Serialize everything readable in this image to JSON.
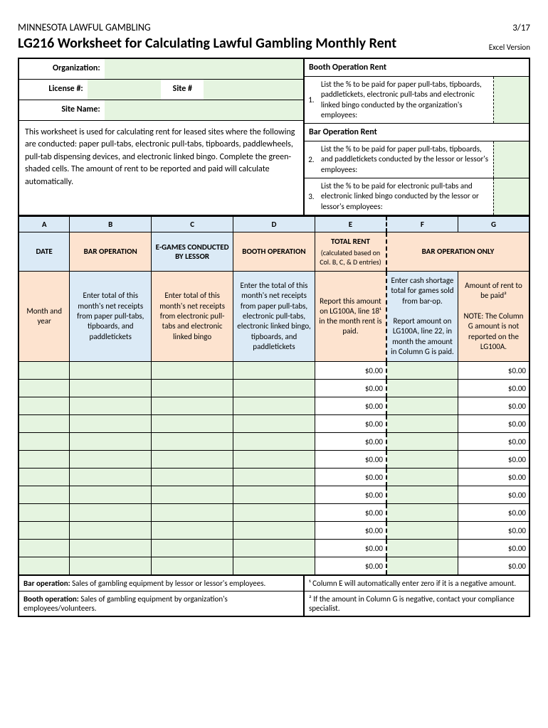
{
  "header": {
    "org_header": "MINNESOTA LAWFUL GAMBLING",
    "date_head": "3/17",
    "main_title": "LG216 Worksheet for Calculating Lawful Gambling Monthly Rent",
    "excel_version": "Excel Version"
  },
  "left_form": {
    "organization_label": "Organization:",
    "license_label": "License #:",
    "siteno_label": "Site #",
    "sitename_label": "Site Name:",
    "instructions": "This worksheet is used for calculating rent for leased sites where the following are conducted:  paper pull-tabs, electronic pull-tabs, tipboards, paddlewheels, pull-tab dispensing devices, and electronic linked bingo.  Complete the green-shaded cells.  The amount of rent to be reported and paid will calculate automatically."
  },
  "right_form": {
    "booth_head": "Booth Operation Rent",
    "bar_head": "Bar Operation Rent",
    "n1": "1.",
    "t1": "List the % to be paid for paper pull-tabs, tipboards, paddletickets, electronic pull-tabs and electronic linked bingo conducted by the organization's employees:",
    "n2": "2.",
    "t2": "List the % to be paid for paper pull-tabs, tipboards, and paddletickets conducted by the lessor or lessor's employees:",
    "n3": "3.",
    "t3": "List the % to be paid for electronic pull-tabs and electronic linked bingo conducted by the lessor or lessor's employees:"
  },
  "columns": {
    "letters": [
      "A",
      "B",
      "C",
      "D",
      "E",
      "F",
      "G"
    ],
    "names": {
      "a": "DATE",
      "b": "BAR OPERATION",
      "c": "E-GAMES CONDUCTED BY LESSOR",
      "d": "BOOTH OPERATION",
      "e": "TOTAL RENT",
      "e_sub": "(calculated based on Col. B, C, & D entries)",
      "fg": "BAR OPERATION ONLY"
    },
    "desc": {
      "a": "Month and year",
      "b": "Enter total of this month's net receipts from paper pull-tabs, tipboards, and paddletickets",
      "c": "Enter total of this month's net receipts from electronic pull-tabs and electronic linked bingo",
      "d": "Enter the total of this month's net receipts from paper pull-tabs, electronic pull-tabs, electronic linked bingo, tipboards, and paddletickets",
      "e": "Report this amount on LG100A, line 18¹ in the month rent is paid.",
      "f": "Enter cash shortage total for games sold from bar-op.\n\nReport amount on LG100A, line 22, in month the amount in Column G is paid.",
      "g": "Amount of rent to be paid²\n\nNOTE: The Column G amount is not reported on the LG100A."
    }
  },
  "rows": [
    {
      "e": "$0.00",
      "g": "$0.00"
    },
    {
      "e": "$0.00",
      "g": "$0.00"
    },
    {
      "e": "$0.00",
      "g": "$0.00"
    },
    {
      "e": "$0.00",
      "g": "$0.00"
    },
    {
      "e": "$0.00",
      "g": "$0.00"
    },
    {
      "e": "$0.00",
      "g": "$0.00"
    },
    {
      "e": "$0.00",
      "g": "$0.00"
    },
    {
      "e": "$0.00",
      "g": "$0.00"
    },
    {
      "e": "$0.00",
      "g": "$0.00"
    },
    {
      "e": "$0.00",
      "g": "$0.00"
    },
    {
      "e": "$0.00",
      "g": "$0.00"
    },
    {
      "e": "$0.00",
      "g": "$0.00"
    }
  ],
  "footer": {
    "l1_b": "Bar operation:",
    "l1": " Sales of gambling equipment by lessor or lessor's employees.",
    "l2_b": "Booth operation:",
    "l2": " Sales of gambling equipment by organization's employees/volunteers.",
    "r1": "¹ Column E will automatically enter zero if it is a negative amount.",
    "r2": "² If the amount in Column G is negative, contact your compliance specialist."
  },
  "colors": {
    "green_field": "#e5f4e0",
    "blue_header": "#dbeaf6",
    "peach": "#fde3cf",
    "border": "#000000"
  },
  "col_widths_pct": [
    10,
    16,
    16,
    16,
    14,
    14,
    14
  ]
}
